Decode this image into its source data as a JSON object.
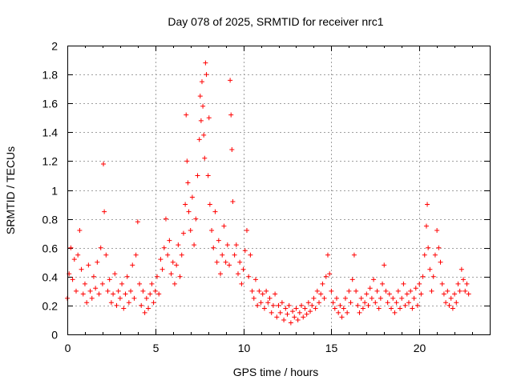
{
  "chart_data": {
    "type": "scatter",
    "title": "Day 078 of 2025, SRMTID for receiver nrc1",
    "xlabel": "GPS time / hours",
    "ylabel": "SRMTID / TECUs",
    "xlim": [
      0,
      24
    ],
    "ylim": [
      0,
      2
    ],
    "xticks": [
      0,
      5,
      10,
      15,
      20
    ],
    "xtick_labels": [
      "0",
      "5",
      "10",
      "15",
      "20"
    ],
    "yticks": [
      0,
      0.2,
      0.4,
      0.6,
      0.8,
      1,
      1.2,
      1.4,
      1.6,
      1.8,
      2
    ],
    "ytick_labels": [
      "0",
      "0.2",
      "0.4",
      "0.6",
      "0.8",
      "1",
      "1.2",
      "1.4",
      "1.6",
      "1.8",
      "2"
    ],
    "grid": true,
    "marker": "+",
    "color": "#ff0000",
    "series": [
      {
        "name": "nrc1",
        "points": [
          [
            0.0,
            0.25
          ],
          [
            0.1,
            0.42
          ],
          [
            0.2,
            0.6
          ],
          [
            0.3,
            0.38
          ],
          [
            0.4,
            0.52
          ],
          [
            0.5,
            0.3
          ],
          [
            0.6,
            0.55
          ],
          [
            0.7,
            0.72
          ],
          [
            0.8,
            0.45
          ],
          [
            0.9,
            0.28
          ],
          [
            1.0,
            0.35
          ],
          [
            1.1,
            0.22
          ],
          [
            1.2,
            0.48
          ],
          [
            1.3,
            0.3
          ],
          [
            1.4,
            0.25
          ],
          [
            1.5,
            0.4
          ],
          [
            1.6,
            0.32
          ],
          [
            1.7,
            0.5
          ],
          [
            1.8,
            0.28
          ],
          [
            1.9,
            0.6
          ],
          [
            2.0,
            0.35
          ],
          [
            2.05,
            1.18
          ],
          [
            2.1,
            0.85
          ],
          [
            2.2,
            0.55
          ],
          [
            2.3,
            0.3
          ],
          [
            2.4,
            0.38
          ],
          [
            2.5,
            0.22
          ],
          [
            2.6,
            0.28
          ],
          [
            2.7,
            0.42
          ],
          [
            2.8,
            0.2
          ],
          [
            2.9,
            0.3
          ],
          [
            3.0,
            0.25
          ],
          [
            3.1,
            0.35
          ],
          [
            3.2,
            0.18
          ],
          [
            3.3,
            0.28
          ],
          [
            3.4,
            0.4
          ],
          [
            3.5,
            0.22
          ],
          [
            3.6,
            0.3
          ],
          [
            3.7,
            0.48
          ],
          [
            3.8,
            0.25
          ],
          [
            3.9,
            0.55
          ],
          [
            4.0,
            0.78
          ],
          [
            4.1,
            0.35
          ],
          [
            4.2,
            0.2
          ],
          [
            4.3,
            0.3
          ],
          [
            4.4,
            0.15
          ],
          [
            4.5,
            0.25
          ],
          [
            4.6,
            0.18
          ],
          [
            4.7,
            0.28
          ],
          [
            4.8,
            0.35
          ],
          [
            4.9,
            0.22
          ],
          [
            5.0,
            0.3
          ],
          [
            5.1,
            0.4
          ],
          [
            5.2,
            0.28
          ],
          [
            5.3,
            0.52
          ],
          [
            5.4,
            0.45
          ],
          [
            5.5,
            0.6
          ],
          [
            5.6,
            0.8
          ],
          [
            5.7,
            0.55
          ],
          [
            5.8,
            0.65
          ],
          [
            5.9,
            0.42
          ],
          [
            6.0,
            0.5
          ],
          [
            6.1,
            0.35
          ],
          [
            6.2,
            0.48
          ],
          [
            6.3,
            0.62
          ],
          [
            6.4,
            0.4
          ],
          [
            6.5,
            0.55
          ],
          [
            6.6,
            0.7
          ],
          [
            6.7,
            0.9
          ],
          [
            6.75,
            1.52
          ],
          [
            6.8,
            1.2
          ],
          [
            6.85,
            1.05
          ],
          [
            6.9,
            0.85
          ],
          [
            7.0,
            0.72
          ],
          [
            7.1,
            0.95
          ],
          [
            7.2,
            0.62
          ],
          [
            7.3,
            0.8
          ],
          [
            7.4,
            1.1
          ],
          [
            7.5,
            1.35
          ],
          [
            7.55,
            1.65
          ],
          [
            7.6,
            1.48
          ],
          [
            7.65,
            1.75
          ],
          [
            7.7,
            1.58
          ],
          [
            7.75,
            1.38
          ],
          [
            7.8,
            1.22
          ],
          [
            7.85,
            1.88
          ],
          [
            7.9,
            1.8
          ],
          [
            8.0,
            1.1
          ],
          [
            8.05,
            1.5
          ],
          [
            8.1,
            0.9
          ],
          [
            8.2,
            0.72
          ],
          [
            8.3,
            0.6
          ],
          [
            8.4,
            0.85
          ],
          [
            8.5,
            0.5
          ],
          [
            8.6,
            0.65
          ],
          [
            8.7,
            0.42
          ],
          [
            8.8,
            0.55
          ],
          [
            8.9,
            0.75
          ],
          [
            9.0,
            0.5
          ],
          [
            9.1,
            0.62
          ],
          [
            9.2,
            0.48
          ],
          [
            9.25,
            1.76
          ],
          [
            9.3,
            1.52
          ],
          [
            9.35,
            1.28
          ],
          [
            9.4,
            0.92
          ],
          [
            9.5,
            0.55
          ],
          [
            9.6,
            0.62
          ],
          [
            9.7,
            0.42
          ],
          [
            9.8,
            0.5
          ],
          [
            9.9,
            0.35
          ],
          [
            10.0,
            0.45
          ],
          [
            10.1,
            0.58
          ],
          [
            10.2,
            0.72
          ],
          [
            10.3,
            0.4
          ],
          [
            10.4,
            0.55
          ],
          [
            10.5,
            0.3
          ],
          [
            10.6,
            0.25
          ],
          [
            10.7,
            0.38
          ],
          [
            10.8,
            0.2
          ],
          [
            10.9,
            0.3
          ],
          [
            11.0,
            0.22
          ],
          [
            11.1,
            0.28
          ],
          [
            11.2,
            0.18
          ],
          [
            11.3,
            0.3
          ],
          [
            11.4,
            0.22
          ],
          [
            11.5,
            0.25
          ],
          [
            11.6,
            0.15
          ],
          [
            11.7,
            0.2
          ],
          [
            11.8,
            0.28
          ],
          [
            11.9,
            0.12
          ],
          [
            12.0,
            0.2
          ],
          [
            12.1,
            0.15
          ],
          [
            12.2,
            0.22
          ],
          [
            12.3,
            0.1
          ],
          [
            12.4,
            0.18
          ],
          [
            12.5,
            0.14
          ],
          [
            12.6,
            0.2
          ],
          [
            12.7,
            0.08
          ],
          [
            12.8,
            0.16
          ],
          [
            12.9,
            0.12
          ],
          [
            13.0,
            0.18
          ],
          [
            13.1,
            0.1
          ],
          [
            13.2,
            0.15
          ],
          [
            13.3,
            0.2
          ],
          [
            13.4,
            0.12
          ],
          [
            13.5,
            0.18
          ],
          [
            13.6,
            0.14
          ],
          [
            13.7,
            0.22
          ],
          [
            13.8,
            0.16
          ],
          [
            13.9,
            0.2
          ],
          [
            14.0,
            0.25
          ],
          [
            14.1,
            0.18
          ],
          [
            14.2,
            0.3
          ],
          [
            14.3,
            0.22
          ],
          [
            14.4,
            0.28
          ],
          [
            14.5,
            0.35
          ],
          [
            14.6,
            0.25
          ],
          [
            14.7,
            0.4
          ],
          [
            14.8,
            0.55
          ],
          [
            14.9,
            0.42
          ],
          [
            15.0,
            0.3
          ],
          [
            15.1,
            0.22
          ],
          [
            15.2,
            0.18
          ],
          [
            15.3,
            0.25
          ],
          [
            15.4,
            0.15
          ],
          [
            15.5,
            0.2
          ],
          [
            15.6,
            0.12
          ],
          [
            15.7,
            0.18
          ],
          [
            15.8,
            0.25
          ],
          [
            15.9,
            0.15
          ],
          [
            16.0,
            0.3
          ],
          [
            16.1,
            0.22
          ],
          [
            16.2,
            0.38
          ],
          [
            16.3,
            0.55
          ],
          [
            16.4,
            0.3
          ],
          [
            16.5,
            0.2
          ],
          [
            16.6,
            0.15
          ],
          [
            16.7,
            0.25
          ],
          [
            16.8,
            0.18
          ],
          [
            16.9,
            0.22
          ],
          [
            17.0,
            0.28
          ],
          [
            17.1,
            0.2
          ],
          [
            17.2,
            0.32
          ],
          [
            17.3,
            0.25
          ],
          [
            17.4,
            0.38
          ],
          [
            17.5,
            0.22
          ],
          [
            17.6,
            0.3
          ],
          [
            17.7,
            0.18
          ],
          [
            17.8,
            0.25
          ],
          [
            17.9,
            0.35
          ],
          [
            18.0,
            0.48
          ],
          [
            18.1,
            0.3
          ],
          [
            18.2,
            0.22
          ],
          [
            18.3,
            0.28
          ],
          [
            18.4,
            0.18
          ],
          [
            18.5,
            0.25
          ],
          [
            18.6,
            0.15
          ],
          [
            18.7,
            0.22
          ],
          [
            18.8,
            0.3
          ],
          [
            18.9,
            0.18
          ],
          [
            19.0,
            0.25
          ],
          [
            19.1,
            0.35
          ],
          [
            19.2,
            0.2
          ],
          [
            19.3,
            0.28
          ],
          [
            19.4,
            0.22
          ],
          [
            19.5,
            0.3
          ],
          [
            19.6,
            0.18
          ],
          [
            19.7,
            0.25
          ],
          [
            19.8,
            0.32
          ],
          [
            19.9,
            0.2
          ],
          [
            20.0,
            0.35
          ],
          [
            20.1,
            0.28
          ],
          [
            20.2,
            0.4
          ],
          [
            20.3,
            0.55
          ],
          [
            20.4,
            0.75
          ],
          [
            20.45,
            0.9
          ],
          [
            20.5,
            0.6
          ],
          [
            20.6,
            0.45
          ],
          [
            20.7,
            0.3
          ],
          [
            20.8,
            0.4
          ],
          [
            20.9,
            0.55
          ],
          [
            21.0,
            0.72
          ],
          [
            21.1,
            0.6
          ],
          [
            21.2,
            0.5
          ],
          [
            21.3,
            0.35
          ],
          [
            21.4,
            0.28
          ],
          [
            21.5,
            0.22
          ],
          [
            21.6,
            0.3
          ],
          [
            21.7,
            0.2
          ],
          [
            21.8,
            0.25
          ],
          [
            21.9,
            0.18
          ],
          [
            22.0,
            0.28
          ],
          [
            22.1,
            0.22
          ],
          [
            22.2,
            0.35
          ],
          [
            22.3,
            0.3
          ],
          [
            22.4,
            0.45
          ],
          [
            22.5,
            0.38
          ],
          [
            22.6,
            0.3
          ],
          [
            22.7,
            0.35
          ],
          [
            22.8,
            0.28
          ]
        ]
      }
    ]
  }
}
